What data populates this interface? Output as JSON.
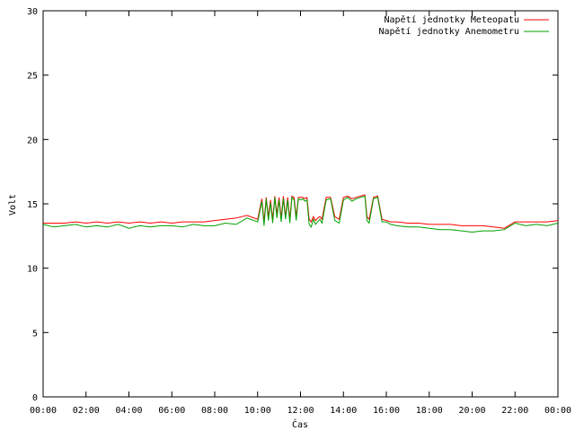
{
  "chart_data": {
    "type": "line",
    "xlabel": "Čas",
    "ylabel": "Volt",
    "ylim": [
      0,
      30
    ],
    "yticks": [
      0,
      5,
      10,
      15,
      20,
      25,
      30
    ],
    "xlim": [
      0,
      24
    ],
    "xticks": [
      0,
      2,
      4,
      6,
      8,
      10,
      12,
      14,
      16,
      18,
      20,
      22,
      24
    ],
    "xtick_labels": [
      "00:00",
      "02:00",
      "04:00",
      "06:00",
      "08:00",
      "10:00",
      "12:00",
      "14:00",
      "16:00",
      "18:00",
      "20:00",
      "22:00",
      "00:00"
    ],
    "grid": false,
    "legend_position": "top-right",
    "series": [
      {
        "name": "Napětí jednotky Meteopatu",
        "color": "#ff0000",
        "x": [
          0,
          0.5,
          1,
          1.5,
          2,
          2.5,
          3,
          3.5,
          4,
          4.5,
          5,
          5.5,
          6,
          6.5,
          7,
          7.5,
          8,
          8.5,
          9,
          9.5,
          10,
          10.2,
          10.3,
          10.4,
          10.5,
          10.6,
          10.7,
          10.8,
          10.9,
          11.0,
          11.1,
          11.2,
          11.3,
          11.4,
          11.5,
          11.6,
          11.7,
          11.8,
          11.9,
          12.0,
          12.1,
          12.2,
          12.3,
          12.4,
          12.5,
          12.6,
          12.7,
          12.8,
          12.9,
          13.0,
          13.2,
          13.4,
          13.6,
          13.8,
          14.0,
          14.2,
          14.4,
          14.6,
          14.8,
          15.0,
          15.1,
          15.2,
          15.4,
          15.6,
          15.8,
          16.0,
          16.2,
          16.5,
          17,
          17.5,
          18,
          18.5,
          19,
          19.5,
          20,
          20.5,
          21,
          21.5,
          22,
          22.5,
          23,
          23.5,
          24
        ],
        "y": [
          13.5,
          13.5,
          13.5,
          13.6,
          13.5,
          13.6,
          13.5,
          13.6,
          13.5,
          13.6,
          13.5,
          13.6,
          13.5,
          13.6,
          13.6,
          13.6,
          13.7,
          13.8,
          13.9,
          14.1,
          13.8,
          15.4,
          13.6,
          15.5,
          14.0,
          15.3,
          13.8,
          15.6,
          14.2,
          15.5,
          13.9,
          15.6,
          14.0,
          15.5,
          13.8,
          15.6,
          15.5,
          14.0,
          15.5,
          15.5,
          15.5,
          15.4,
          15.5,
          13.8,
          13.6,
          14.0,
          13.7,
          13.9,
          14.0,
          13.8,
          15.5,
          15.5,
          14.0,
          13.8,
          15.5,
          15.6,
          15.4,
          15.5,
          15.6,
          15.7,
          14.0,
          13.8,
          15.5,
          15.6,
          13.8,
          13.7,
          13.6,
          13.6,
          13.5,
          13.5,
          13.4,
          13.4,
          13.4,
          13.3,
          13.3,
          13.3,
          13.2,
          13.1,
          13.6,
          13.6,
          13.6,
          13.6,
          13.7
        ]
      },
      {
        "name": "Napětí jednotky Anemometru",
        "color": "#00a000",
        "x": [
          0,
          0.5,
          1,
          1.5,
          2,
          2.5,
          3,
          3.5,
          4,
          4.5,
          5,
          5.5,
          6,
          6.5,
          7,
          7.5,
          8,
          8.5,
          9,
          9.5,
          10,
          10.2,
          10.3,
          10.4,
          10.5,
          10.6,
          10.7,
          10.8,
          10.9,
          11.0,
          11.1,
          11.2,
          11.3,
          11.4,
          11.5,
          11.6,
          11.7,
          11.8,
          11.9,
          12.0,
          12.1,
          12.2,
          12.3,
          12.4,
          12.5,
          12.6,
          12.7,
          12.8,
          12.9,
          13.0,
          13.2,
          13.4,
          13.6,
          13.8,
          14.0,
          14.2,
          14.4,
          14.6,
          14.8,
          15.0,
          15.1,
          15.2,
          15.4,
          15.6,
          15.8,
          16.0,
          16.2,
          16.5,
          17,
          17.5,
          18,
          18.5,
          19,
          19.5,
          20,
          20.5,
          21,
          21.5,
          22,
          22.5,
          23,
          23.5,
          24
        ],
        "y": [
          13.4,
          13.2,
          13.3,
          13.4,
          13.2,
          13.3,
          13.2,
          13.4,
          13.1,
          13.3,
          13.2,
          13.3,
          13.3,
          13.2,
          13.4,
          13.3,
          13.3,
          13.5,
          13.4,
          13.9,
          13.6,
          15.2,
          13.3,
          15.4,
          13.7,
          15.1,
          13.5,
          15.5,
          13.9,
          15.3,
          13.6,
          15.4,
          13.8,
          15.3,
          13.5,
          15.5,
          15.3,
          13.7,
          15.4,
          15.3,
          15.4,
          15.2,
          15.3,
          13.4,
          13.2,
          13.8,
          13.4,
          13.6,
          13.8,
          13.5,
          15.3,
          15.4,
          13.7,
          13.5,
          15.3,
          15.5,
          15.2,
          15.4,
          15.5,
          15.6,
          13.7,
          13.5,
          15.4,
          15.5,
          13.6,
          13.6,
          13.4,
          13.3,
          13.2,
          13.2,
          13.1,
          13.0,
          13.0,
          12.9,
          12.8,
          12.9,
          12.9,
          13.0,
          13.5,
          13.3,
          13.4,
          13.3,
          13.5
        ]
      }
    ]
  }
}
